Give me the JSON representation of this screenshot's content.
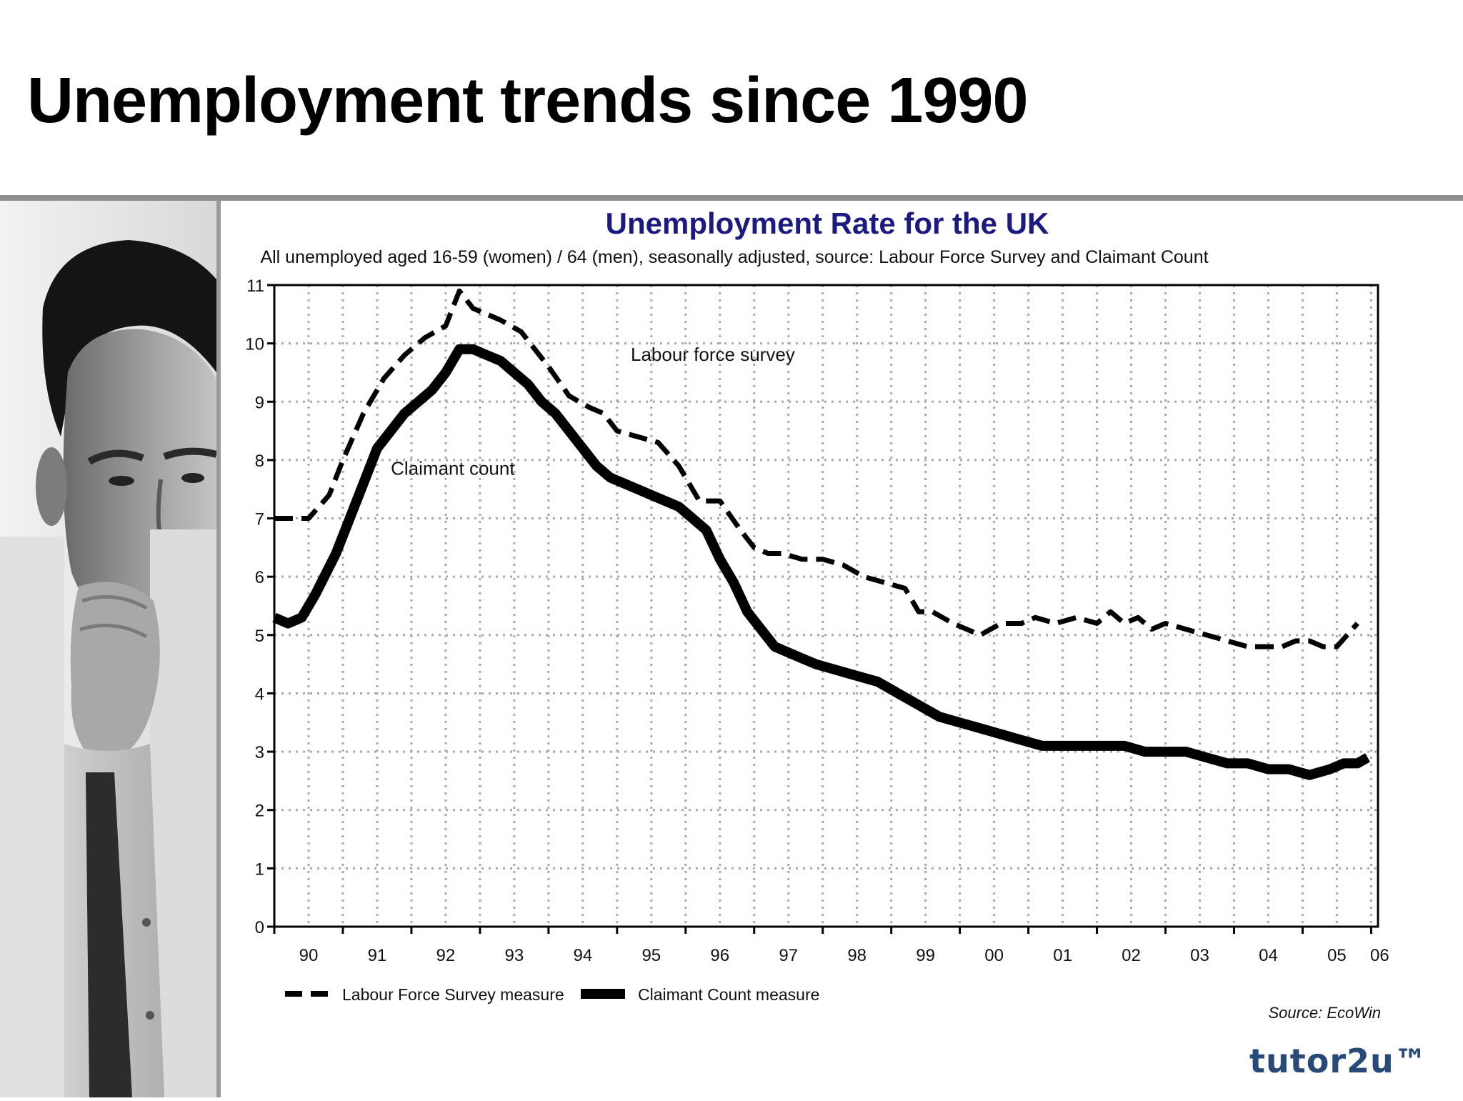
{
  "slide": {
    "title": "Unemployment trends since 1990"
  },
  "branding": {
    "logo": "tutor2u™",
    "photo": "man-thinking-at-computer-photo"
  },
  "colors": {
    "title_blue": "#1a1a80",
    "logo_blue": "#284a78",
    "divider": "#8f8f8f"
  },
  "chart_data": {
    "type": "line",
    "title": "Unemployment Rate for the UK",
    "subtitle": "All unemployed aged 16-59 (women) / 64 (men), seasonally adjusted, source: Labour Force Survey and Claimant Count",
    "xlabel": "",
    "ylabel": "",
    "xlim": [
      1990,
      2006.1
    ],
    "ylim": [
      0,
      11
    ],
    "x_ticks": [
      "90",
      "91",
      "92",
      "93",
      "94",
      "95",
      "96",
      "97",
      "98",
      "99",
      "00",
      "01",
      "02",
      "03",
      "04",
      "05",
      "06"
    ],
    "y_ticks": [
      0,
      1,
      2,
      3,
      4,
      5,
      6,
      7,
      8,
      9,
      10,
      11
    ],
    "grid": true,
    "legend": "bottom-left",
    "source_note": "Source: EcoWin",
    "annotations": [
      {
        "text": "Labour force survey",
        "x": 1995.2,
        "y": 9.7
      },
      {
        "text": "Claimant count",
        "x": 1991.7,
        "y": 7.75
      }
    ],
    "series": [
      {
        "name": "Labour Force Survey measure",
        "style": "dashed",
        "x": [
          1990.0,
          1990.3,
          1990.5,
          1990.8,
          1991.0,
          1991.3,
          1991.6,
          1991.9,
          1992.2,
          1992.5,
          1992.7,
          1992.9,
          1993.1,
          1993.3,
          1993.6,
          1993.8,
          1994.0,
          1994.3,
          1994.6,
          1994.8,
          1995.0,
          1995.3,
          1995.6,
          1995.9,
          1996.2,
          1996.5,
          1996.8,
          1997.0,
          1997.2,
          1997.4,
          1997.7,
          1998.0,
          1998.3,
          1998.6,
          1998.9,
          1999.2,
          1999.4,
          1999.6,
          1999.9,
          2000.1,
          2000.3,
          2000.6,
          2000.9,
          2001.1,
          2001.4,
          2001.7,
          2002.0,
          2002.2,
          2002.4,
          2002.6,
          2002.8,
          2003.0,
          2003.3,
          2003.6,
          2003.9,
          2004.2,
          2004.5,
          2004.7,
          2004.9,
          2005.1,
          2005.3,
          2005.5,
          2005.8
        ],
        "values": [
          7.0,
          7.0,
          7.0,
          7.4,
          8.0,
          8.8,
          9.4,
          9.8,
          10.1,
          10.3,
          10.9,
          10.6,
          10.5,
          10.4,
          10.2,
          9.9,
          9.6,
          9.1,
          8.9,
          8.8,
          8.5,
          8.4,
          8.3,
          7.9,
          7.3,
          7.3,
          6.8,
          6.5,
          6.4,
          6.4,
          6.3,
          6.3,
          6.2,
          6.0,
          5.9,
          5.8,
          5.4,
          5.4,
          5.2,
          5.1,
          5.0,
          5.2,
          5.2,
          5.3,
          5.2,
          5.3,
          5.2,
          5.4,
          5.2,
          5.3,
          5.1,
          5.2,
          5.1,
          5.0,
          4.9,
          4.8,
          4.8,
          4.8,
          4.9,
          4.9,
          4.8,
          4.8,
          5.2
        ]
      },
      {
        "name": "Claimant Count measure",
        "style": "solid",
        "x": [
          1990.0,
          1990.2,
          1990.4,
          1990.6,
          1990.9,
          1991.1,
          1991.3,
          1991.5,
          1991.7,
          1991.9,
          1992.1,
          1992.3,
          1992.5,
          1992.7,
          1992.9,
          1993.1,
          1993.3,
          1993.5,
          1993.7,
          1993.9,
          1994.1,
          1994.3,
          1994.5,
          1994.7,
          1994.9,
          1995.1,
          1995.3,
          1995.5,
          1995.7,
          1995.9,
          1996.1,
          1996.3,
          1996.5,
          1996.7,
          1996.9,
          1997.1,
          1997.3,
          1997.5,
          1997.7,
          1997.9,
          1998.2,
          1998.5,
          1998.8,
          1999.1,
          1999.4,
          1999.7,
          2000.0,
          2000.3,
          2000.6,
          2000.9,
          2001.2,
          2001.5,
          2001.8,
          2002.1,
          2002.4,
          2002.7,
          2003.0,
          2003.3,
          2003.6,
          2003.9,
          2004.2,
          2004.5,
          2004.8,
          2005.1,
          2005.4,
          2005.6,
          2005.8,
          2005.95
        ],
        "values": [
          5.3,
          5.2,
          5.3,
          5.7,
          6.4,
          7.0,
          7.6,
          8.2,
          8.5,
          8.8,
          9.0,
          9.2,
          9.5,
          9.9,
          9.9,
          9.8,
          9.7,
          9.5,
          9.3,
          9.0,
          8.8,
          8.5,
          8.2,
          7.9,
          7.7,
          7.6,
          7.5,
          7.4,
          7.3,
          7.2,
          7.0,
          6.8,
          6.3,
          5.9,
          5.4,
          5.1,
          4.8,
          4.7,
          4.6,
          4.5,
          4.4,
          4.3,
          4.2,
          4.0,
          3.8,
          3.6,
          3.5,
          3.4,
          3.3,
          3.2,
          3.1,
          3.1,
          3.1,
          3.1,
          3.1,
          3.0,
          3.0,
          3.0,
          2.9,
          2.8,
          2.8,
          2.7,
          2.7,
          2.6,
          2.7,
          2.8,
          2.8,
          2.9
        ]
      }
    ]
  }
}
